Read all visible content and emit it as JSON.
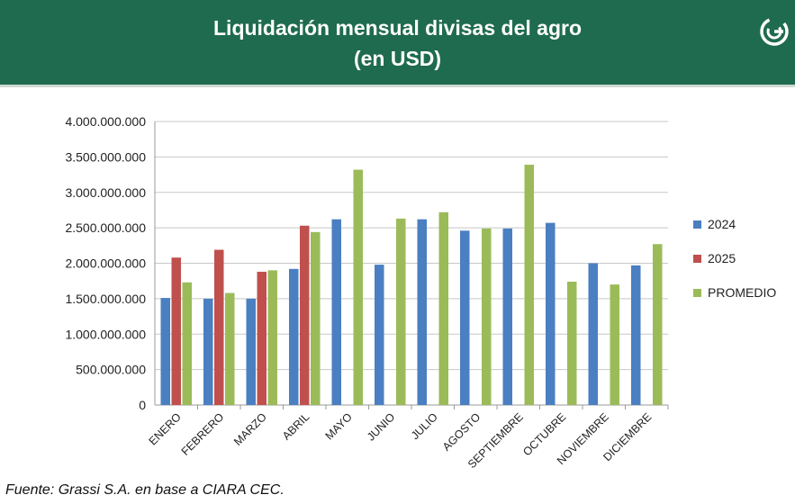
{
  "header": {
    "title_line1": "Liquidación mensual divisas del agro",
    "title_line2": "(en USD)",
    "logo_icon": "grassi-logo-icon",
    "bg_color": "#1f6b4f"
  },
  "source_text": "Fuente: Grassi S.A. en base a CIARA CEC.",
  "chart_data": {
    "type": "bar",
    "title": "Liquidación mensual divisas del agro (en USD)",
    "xlabel": "",
    "ylabel": "",
    "ylim": [
      0,
      4000000000
    ],
    "yticks": [
      0,
      500000000,
      1000000000,
      1500000000,
      2000000000,
      2500000000,
      3000000000,
      3500000000,
      4000000000
    ],
    "ytick_labels": [
      "0",
      "500.000.000",
      "1.000.000.000",
      "1.500.000.000",
      "2.000.000.000",
      "2.500.000.000",
      "3.000.000.000",
      "3.500.000.000",
      "4.000.000.000"
    ],
    "grid": true,
    "legend_position": "right",
    "categories": [
      "ENERO",
      "FEBRERO",
      "MARZO",
      "ABRIL",
      "MAYO",
      "JUNIO",
      "JULIO",
      "AGOSTO",
      "SEPTIEMBRE",
      "OCTUBRE",
      "NOVIEMBRE",
      "DICIEMBRE"
    ],
    "series": [
      {
        "name": "2024",
        "color": "#4a7fc1",
        "values": [
          1510000000,
          1500000000,
          1500000000,
          1920000000,
          2620000000,
          1980000000,
          2620000000,
          2460000000,
          2490000000,
          2570000000,
          2000000000,
          1970000000
        ]
      },
      {
        "name": "2025",
        "color": "#c0504d",
        "values": [
          2080000000,
          2190000000,
          1880000000,
          2530000000,
          null,
          null,
          null,
          null,
          null,
          null,
          null,
          null
        ]
      },
      {
        "name": "PROMEDIO",
        "color": "#9bbb59",
        "values": [
          1730000000,
          1580000000,
          1900000000,
          2440000000,
          3320000000,
          2630000000,
          2720000000,
          2490000000,
          3390000000,
          1740000000,
          1700000000,
          2270000000
        ]
      }
    ]
  }
}
